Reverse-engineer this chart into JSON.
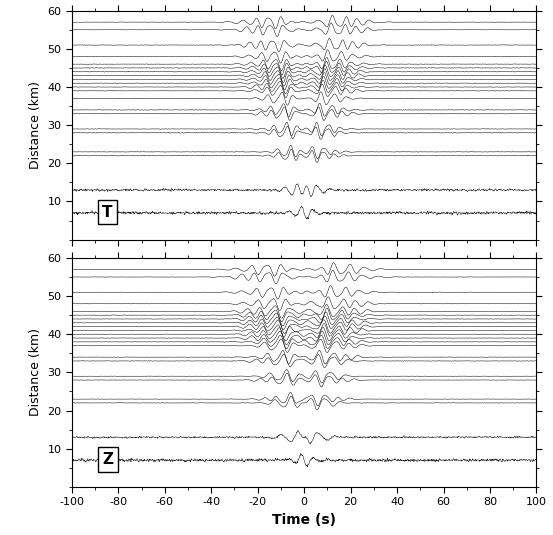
{
  "time_range": [
    -100,
    100
  ],
  "dist_range": [
    0,
    60
  ],
  "yticks": [
    10,
    20,
    30,
    40,
    50,
    60
  ],
  "xticks": [
    -100,
    -80,
    -60,
    -40,
    -20,
    0,
    20,
    40,
    60,
    80,
    100
  ],
  "xlabel": "Time (s)",
  "ylabel": "Distance (km)",
  "label_T": "T",
  "label_Z": "Z",
  "figsize": [
    5.53,
    5.35
  ],
  "dpi": 100,
  "bg_color": "#ffffff",
  "trace_color": "#000000",
  "distances_T": [
    7,
    13,
    22,
    23,
    28,
    29,
    33,
    34,
    37,
    39,
    40,
    41,
    42,
    43,
    44,
    45,
    46,
    48,
    51,
    55,
    57
  ],
  "distances_Z": [
    7,
    13,
    22,
    23,
    28,
    29,
    33,
    34,
    37,
    38,
    39,
    40,
    41,
    42,
    43,
    44,
    45,
    46,
    48,
    51,
    55,
    57
  ],
  "linewidth": 0.35
}
